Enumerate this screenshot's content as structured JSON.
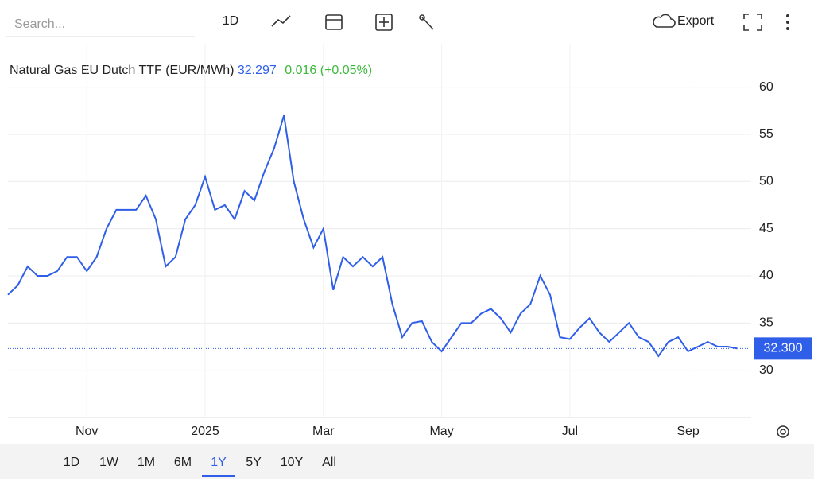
{
  "toolbar": {
    "search_placeholder": "Search...",
    "interval": "1D",
    "export": "Export"
  },
  "ranges": [
    "1D",
    "1W",
    "1M",
    "6M",
    "1Y",
    "5Y",
    "10Y",
    "All"
  ],
  "active_range_index": 4,
  "chart_data": {
    "type": "line",
    "title": "Natural Gas EU Dutch TTF (EUR/MWh)",
    "last_value": "32.297",
    "change": "0.016 (+0.05%)",
    "color": "#2f5fe8",
    "categories": [
      null,
      null,
      null,
      null,
      null,
      null,
      null,
      null,
      "Nov",
      null,
      null,
      null,
      null,
      null,
      null,
      null,
      null,
      null,
      null,
      null,
      "2025",
      null,
      null,
      null,
      null,
      null,
      null,
      null,
      null,
      null,
      null,
      null,
      "Mar",
      null,
      null,
      null,
      null,
      null,
      null,
      null,
      null,
      null,
      null,
      null,
      "May",
      null,
      null,
      null,
      null,
      null,
      null,
      null,
      null,
      null,
      null,
      null,
      null,
      "Jul",
      null,
      null,
      null,
      null,
      null,
      null,
      null,
      null,
      null,
      null,
      null,
      "Sep",
      null,
      null,
      null,
      null,
      null
    ],
    "values": [
      38,
      39,
      41,
      40,
      40,
      40.5,
      42,
      42,
      40.5,
      42,
      45,
      47,
      47,
      47,
      48.5,
      46,
      41,
      42,
      46,
      47.5,
      50.5,
      47,
      47.5,
      46,
      49,
      48,
      51,
      53.5,
      57,
      50,
      46,
      43,
      45,
      38.5,
      42,
      41,
      42,
      41,
      42,
      37,
      33.5,
      35,
      35.2,
      33,
      32,
      33.5,
      35,
      35,
      36,
      36.5,
      35.5,
      34,
      36,
      37,
      40,
      38,
      33.5,
      33.3,
      34.5,
      35.5,
      34,
      33,
      34,
      35,
      33.5,
      33,
      31.5,
      33,
      33.5,
      32,
      32.5,
      33,
      32.5,
      32.5,
      32.3
    ],
    "price_marker": {
      "value": 32.3,
      "label": "32.300"
    },
    "ylim": [
      25,
      64.6
    ],
    "yticks": [
      30,
      35,
      40,
      45,
      50,
      55,
      60
    ],
    "grid": true
  }
}
